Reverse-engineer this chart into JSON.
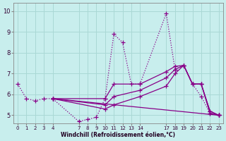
{
  "background_color": "#c8eeed",
  "plot_bg_color": "#c8eeed",
  "grid_color": "#aad8d5",
  "line_color": "#880088",
  "marker": "+",
  "markersize": 4,
  "linewidth": 0.9,
  "xlabel": "Windchill (Refroidissement éolien,°C)",
  "ylabel_ticks": [
    5,
    6,
    7,
    8,
    9,
    10
  ],
  "xlabel_ticks": [
    0,
    1,
    2,
    3,
    4,
    7,
    8,
    9,
    10,
    11,
    12,
    13,
    14,
    17,
    18,
    19,
    20,
    21,
    22,
    23
  ],
  "xlim": [
    -0.5,
    23.5
  ],
  "ylim": [
    4.6,
    10.4
  ],
  "lines": [
    {
      "x": [
        0,
        1,
        2,
        3,
        4,
        7,
        8,
        9,
        10,
        11,
        12,
        13,
        14,
        17,
        18,
        19,
        20,
        21,
        22,
        23
      ],
      "y": [
        6.5,
        5.8,
        5.7,
        5.8,
        5.8,
        4.7,
        4.8,
        4.9,
        5.8,
        8.9,
        8.5,
        6.5,
        6.5,
        9.9,
        7.2,
        7.4,
        6.5,
        5.9,
        5.1,
        5.0
      ],
      "dotted": true
    },
    {
      "x": [
        4,
        10,
        11,
        14,
        17,
        18,
        19,
        20,
        21,
        22,
        23
      ],
      "y": [
        5.8,
        5.8,
        6.5,
        6.5,
        7.1,
        7.35,
        7.4,
        6.5,
        6.5,
        5.1,
        5.0
      ],
      "dotted": false
    },
    {
      "x": [
        4,
        10,
        11,
        14,
        17,
        18,
        19,
        20,
        21,
        22,
        23
      ],
      "y": [
        5.8,
        5.5,
        5.9,
        6.2,
        6.8,
        7.2,
        7.4,
        6.5,
        6.5,
        5.2,
        5.0
      ],
      "dotted": false
    },
    {
      "x": [
        4,
        10,
        11,
        14,
        17,
        18,
        19,
        20,
        21,
        22,
        23
      ],
      "y": [
        5.8,
        5.3,
        5.5,
        5.9,
        6.4,
        7.0,
        7.4,
        6.5,
        6.5,
        5.2,
        5.0
      ],
      "dotted": false
    },
    {
      "x": [
        4,
        23
      ],
      "y": [
        5.8,
        5.0
      ],
      "dotted": false
    }
  ]
}
